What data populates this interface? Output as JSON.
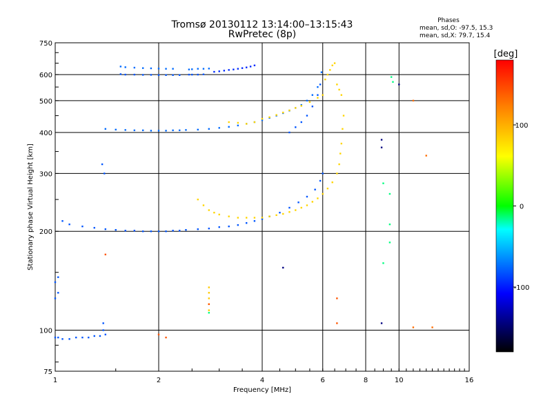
{
  "chart_data": {
    "type": "scatter",
    "title": "Tromsø 20130112 13:14:00–13:15:43",
    "subtitle": "RwPretec (8p)",
    "xlabel": "Frequency [MHz]",
    "ylabel": "Stationary phase Virtual Height [km]",
    "xscale": "log2",
    "yscale": "log",
    "xlim": [
      1,
      16
    ],
    "ylim": [
      75,
      750
    ],
    "xticks": [
      1,
      2,
      4,
      6,
      8,
      10,
      16
    ],
    "yticks": [
      75,
      100,
      200,
      300,
      400,
      500,
      600,
      750
    ],
    "xgrid": [
      2,
      4,
      6,
      8,
      10
    ],
    "ygrid": [
      100,
      200,
      300,
      400,
      500,
      600
    ],
    "stats": {
      "heading": "Phases",
      "line_o": "mean, sd,O: -97.5, 15.3",
      "line_x": "mean, sd,X: 79.7, 15.4"
    },
    "colorbar": {
      "label": "[deg]",
      "min": -180,
      "max": 180,
      "ticks": [
        100,
        0,
        -100
      ],
      "colors": [
        "#ff0000",
        "#ff8000",
        "#ffff00",
        "#00ff00",
        "#00ffff",
        "#0000ff",
        "#000000"
      ]
    },
    "series": [
      {
        "phase": -100,
        "x": [
          1.05,
          1.1,
          1.2,
          1.3,
          1.4,
          1.5,
          1.6,
          1.7,
          1.8,
          1.9,
          2.0,
          2.1,
          2.2,
          2.3,
          2.4,
          2.6,
          2.8,
          3.0,
          3.2,
          3.4,
          3.6,
          3.8,
          4.0,
          4.2,
          4.5,
          4.8,
          5.1,
          5.4,
          5.7,
          5.9,
          6.0
        ],
        "y": [
          215,
          210,
          207,
          205,
          203,
          202,
          201,
          201,
          200,
          200,
          200,
          200,
          201,
          201,
          202,
          203,
          204,
          206,
          207,
          209,
          212,
          215,
          218,
          222,
          228,
          236,
          245,
          255,
          268,
          285,
          300
        ]
      },
      {
        "phase": -100,
        "x": [
          4.8,
          5.0,
          5.2,
          5.4,
          5.6,
          5.8,
          5.9
        ],
        "y": [
          400,
          415,
          430,
          450,
          480,
          520,
          560
        ]
      },
      {
        "phase": -95,
        "x": [
          1.4,
          1.5,
          1.6,
          1.7,
          1.8,
          1.9,
          2.0,
          2.1,
          2.2,
          2.3,
          2.4,
          2.6,
          2.8,
          3.0,
          3.2,
          3.4,
          3.6,
          3.8,
          4.0,
          4.2,
          4.4,
          4.6,
          4.8,
          5.0,
          5.2,
          5.4,
          5.6,
          5.8,
          5.95
        ],
        "y": [
          410,
          408,
          407,
          406,
          406,
          405,
          405,
          405,
          406,
          406,
          407,
          408,
          410,
          413,
          416,
          420,
          425,
          430,
          436,
          443,
          450,
          458,
          466,
          475,
          485,
          500,
          520,
          550,
          610
        ]
      },
      {
        "phase": -100,
        "x": [
          1.55,
          1.6,
          1.7,
          1.8,
          1.9,
          2.0,
          2.1,
          2.2,
          2.3,
          2.45,
          2.5,
          2.6,
          2.7
        ],
        "y": [
          602,
          600,
          600,
          599,
          599,
          598,
          598,
          598,
          598,
          600,
          600,
          600,
          601
        ]
      },
      {
        "phase": -95,
        "x": [
          1.55,
          1.6,
          1.7,
          1.8,
          1.9,
          2.0,
          2.1,
          2.2,
          2.45,
          2.5,
          2.6,
          2.7,
          2.8
        ],
        "y": [
          635,
          632,
          630,
          628,
          627,
          626,
          625,
          625,
          622,
          623,
          625,
          625,
          626
        ]
      },
      {
        "phase": -110,
        "x": [
          2.9,
          3.0,
          3.1,
          3.2,
          3.3,
          3.4,
          3.5,
          3.6,
          3.7,
          3.8
        ],
        "y": [
          612,
          614,
          617,
          620,
          622,
          625,
          628,
          631,
          635,
          640
        ]
      },
      {
        "phase": -100,
        "x": [
          1.0,
          1.02,
          1.05,
          1.1,
          1.15,
          1.2,
          1.25,
          1.3,
          1.35,
          1.4
        ],
        "y": [
          95,
          95,
          94,
          94,
          95,
          95,
          95,
          96,
          96,
          97
        ]
      },
      {
        "phase": -100,
        "x": [
          1.0,
          1.02,
          1.0,
          1.02,
          1.37,
          1.39,
          1.38,
          1.38
        ],
        "y": [
          140,
          145,
          125,
          130,
          320,
          300,
          105,
          100
        ]
      },
      {
        "phase": 80,
        "x": [
          2.6,
          2.7,
          2.8,
          2.9,
          3.0,
          3.2,
          3.4,
          3.6,
          3.8,
          4.0,
          4.2,
          4.4,
          4.6,
          4.8,
          5.0,
          5.2,
          5.4,
          5.6,
          5.8,
          6.0,
          6.2,
          6.4,
          6.6,
          6.7,
          6.75,
          6.8,
          6.85,
          6.9
        ],
        "y": [
          250,
          240,
          232,
          228,
          225,
          222,
          220,
          220,
          220,
          220,
          222,
          224,
          226,
          229,
          232,
          236,
          240,
          246,
          252,
          260,
          270,
          282,
          300,
          320,
          345,
          370,
          410,
          450
        ]
      },
      {
        "phase": 80,
        "x": [
          3.2,
          3.4,
          3.6,
          3.8,
          4.0,
          4.2,
          4.4,
          4.6,
          4.8,
          5.0,
          5.2,
          5.5,
          5.8,
          6.0
        ],
        "y": [
          430,
          428,
          425,
          430,
          440,
          445,
          452,
          460,
          467,
          475,
          482,
          495,
          510,
          520
        ]
      },
      {
        "phase": 80,
        "x": [
          6.1,
          6.2,
          6.3,
          6.4,
          6.5,
          6.6,
          6.7,
          6.8
        ],
        "y": [
          580,
          600,
          620,
          640,
          650,
          560,
          540,
          520
        ]
      },
      {
        "phase": 85,
        "x": [
          2.8,
          2.8,
          2.8,
          2.8,
          2.8
        ],
        "y": [
          135,
          130,
          125,
          120,
          115
        ]
      },
      {
        "phase": 140,
        "x": [
          2.8,
          2.0,
          2.1,
          6.6,
          6.6,
          1.4
        ],
        "y": [
          120,
          97,
          95,
          125,
          105,
          170
        ]
      },
      {
        "phase": -30,
        "x": [
          2.8,
          9.0,
          9.0,
          9.4,
          9.4,
          9.4,
          9.5,
          9.6
        ],
        "y": [
          113,
          280,
          160,
          260,
          210,
          185,
          590,
          570
        ]
      },
      {
        "phase": -150,
        "x": [
          4.6,
          8.9,
          10.0,
          8.9,
          8.9
        ],
        "y": [
          155,
          105,
          560,
          380,
          360
        ]
      },
      {
        "phase": 130,
        "x": [
          11.0,
          12.0,
          11.0,
          12.5
        ],
        "y": [
          500,
          340,
          102,
          102
        ]
      }
    ]
  }
}
